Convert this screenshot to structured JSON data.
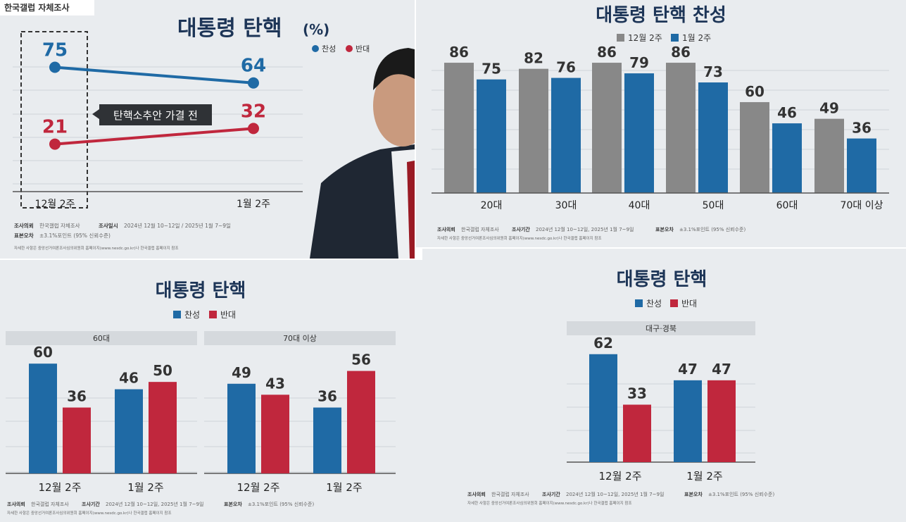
{
  "colors": {
    "approve": "#1f6aa5",
    "oppose": "#c0273d",
    "prev": "#888888",
    "title": "#1d3557"
  },
  "sources": {
    "panel1": {
      "tag": "한국갤럽 자체조사",
      "line1_a": "조사의뢰",
      "line1_b": "한국갤럽 자체조사",
      "line1_c": "조사일시",
      "line1_d": "2024년 12월 10~12일 / 2025년 1월 7~9일",
      "line2_a": "표본오차",
      "line2_b": "±3.1%포인트 (95% 신뢰수준)",
      "line3": "자세한 사항은 중앙선거여론조사심의위원회 홈페이지(www.nesdc.go.kr)나 한국갤럽 홈페이지 참조"
    },
    "other": {
      "line1_a": "조사의뢰",
      "line1_b": "한국갤럽 자체조사",
      "line1_c": "조사기간",
      "line1_d": "2024년 12월 10~12일, 2025년 1월 7~9일",
      "line1_e": "표본오차",
      "line1_f": "±3.1%포인트 (95% 신뢰수준)",
      "line2": "자세한 사항은 중앙선거여론조사심의위원회 홈페이지(www.nesdc.go.kr)나 한국갤럽 홈페이지 참조"
    }
  },
  "chart_data": [
    {
      "type": "line",
      "title": "대통령 탄핵",
      "title_unit": "(%)",
      "categories": [
        "12월 2주",
        "1월 2주"
      ],
      "series": [
        {
          "name": "찬성",
          "values": [
            75,
            64
          ],
          "color": "#1f6aa5"
        },
        {
          "name": "반대",
          "values": [
            21,
            32
          ],
          "color": "#c0273d"
        }
      ],
      "annotation": "탄핵소추안 가결 전",
      "legend": "top-right",
      "grid": true
    },
    {
      "type": "bar",
      "title": "대통령 탄핵 찬성",
      "categories": [
        "20대",
        "30대",
        "40대",
        "50대",
        "60대",
        "70대 이상"
      ],
      "series": [
        {
          "name": "12월 2주",
          "values": [
            86,
            82,
            86,
            86,
            60,
            49
          ],
          "color": "#888888"
        },
        {
          "name": "1월 2주",
          "values": [
            75,
            76,
            79,
            73,
            46,
            36
          ],
          "color": "#1f6aa5"
        }
      ],
      "ylim": [
        0,
        100
      ],
      "legend": "top",
      "grid": true
    },
    {
      "type": "bar",
      "title": "대통령 탄핵",
      "legend_items": [
        "찬성",
        "반대"
      ],
      "groups": [
        {
          "label": "60대",
          "categories": [
            "12월 2주",
            "1월 2주"
          ],
          "series": [
            {
              "name": "찬성",
              "values": [
                60,
                46
              ],
              "color": "#1f6aa5"
            },
            {
              "name": "반대",
              "values": [
                36,
                50
              ],
              "color": "#c0273d"
            }
          ]
        },
        {
          "label": "70대 이상",
          "categories": [
            "12월 2주",
            "1월 2주"
          ],
          "series": [
            {
              "name": "찬성",
              "values": [
                49,
                36
              ],
              "color": "#1f6aa5"
            },
            {
              "name": "반대",
              "values": [
                43,
                56
              ],
              "color": "#c0273d"
            }
          ]
        }
      ],
      "ylim": [
        0,
        62
      ],
      "grid": true
    },
    {
      "type": "bar",
      "title": "대통령 탄핵",
      "legend_items": [
        "찬성",
        "반대"
      ],
      "groups": [
        {
          "label": "대구·경북",
          "categories": [
            "12월 2주",
            "1월 2주"
          ],
          "series": [
            {
              "name": "찬성",
              "values": [
                62,
                47
              ],
              "color": "#1f6aa5"
            },
            {
              "name": "반대",
              "values": [
                33,
                47
              ],
              "color": "#c0273d"
            }
          ]
        }
      ],
      "ylim": [
        0,
        70
      ],
      "grid": true
    }
  ]
}
